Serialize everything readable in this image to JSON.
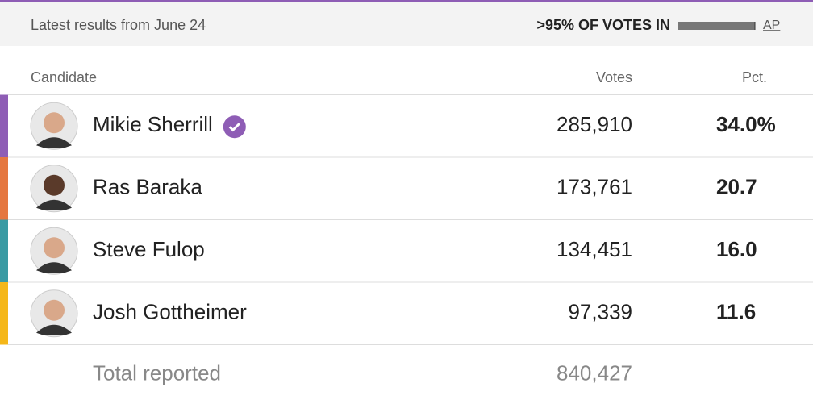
{
  "header": {
    "title": "Latest results from June 24",
    "reporting": ">95% OF VOTES IN",
    "source": "AP"
  },
  "table": {
    "columns": [
      "Candidate",
      "Votes",
      "Pct."
    ],
    "rows": [
      {
        "name": "Mikie Sherrill",
        "votes": "285,910",
        "pct": "34.0%",
        "color": "#8e5db5",
        "winner": true
      },
      {
        "name": "Ras Baraka",
        "votes": "173,761",
        "pct": "20.7",
        "color": "#e57740",
        "winner": false
      },
      {
        "name": "Steve Fulop",
        "votes": "134,451",
        "pct": "16.0",
        "color": "#3a9aa3",
        "winner": false
      },
      {
        "name": "Josh Gottheimer",
        "votes": "97,339",
        "pct": "11.6",
        "color": "#f5b719",
        "winner": false
      }
    ],
    "total": {
      "label": "Total reported",
      "votes": "840,427"
    }
  }
}
